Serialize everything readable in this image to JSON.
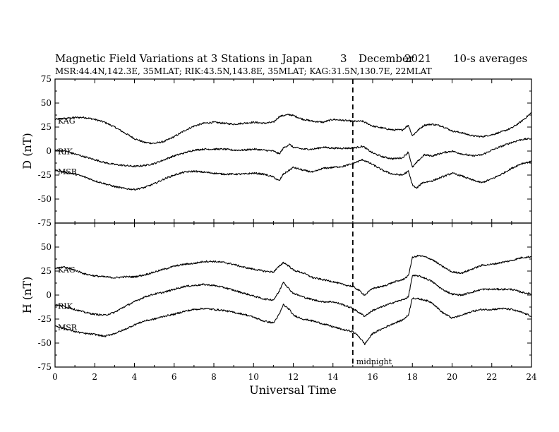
{
  "chart_data": {
    "type": "line",
    "title": "Magnetic Field Variations at 3 Stations in Japan",
    "date_day": "3",
    "date_month": "December",
    "date_year": "2021",
    "averaging": "10-s averages",
    "station_info": "MSR:44.4N,142.3E, 35MLAT;  RIK:43.5N,143.8E, 35MLAT;  KAG:31.5N,130.7E, 22MLAT",
    "xlabel": "Universal Time",
    "xlim": [
      0,
      24
    ],
    "xticks": [
      "0",
      "2",
      "4",
      "6",
      "8",
      "10",
      "12",
      "14",
      "16",
      "18",
      "20",
      "22",
      "24"
    ],
    "annotation": {
      "label": "midnight",
      "x": 15
    },
    "panels": [
      {
        "ylabel": "D (nT)",
        "ylim": [
          -75,
          75
        ],
        "yticks": [
          "75",
          "50",
          "25",
          "0",
          "-25",
          "-50",
          "-75"
        ],
        "series": [
          {
            "name": "KAG",
            "x": [
              0,
              0.5,
              1,
              1.5,
              2,
              2.5,
              3,
              3.5,
              4,
              4.5,
              5,
              5.5,
              6,
              6.5,
              7,
              7.5,
              8,
              8.5,
              9,
              9.5,
              10,
              10.5,
              11,
              11.3,
              11.5,
              11.8,
              12,
              12.5,
              13,
              13.5,
              14,
              14.5,
              15,
              15.5,
              16,
              16.5,
              17,
              17.5,
              17.8,
              18,
              18.3,
              18.6,
              19,
              19.5,
              20,
              20.5,
              21,
              21.5,
              22,
              22.5,
              23,
              23.5,
              24
            ],
            "y": [
              33,
              34,
              35,
              35,
              33,
              30,
              25,
              19,
              13,
              9,
              8,
              10,
              15,
              21,
              26,
              29,
              30,
              29,
              28,
              29,
              30,
              29,
              30,
              36,
              37,
              38,
              37,
              33,
              31,
              30,
              33,
              32,
              31,
              31,
              26,
              24,
              22,
              22,
              27,
              16,
              22,
              27,
              28,
              26,
              21,
              19,
              16,
              15,
              17,
              20,
              24,
              31,
              40
            ]
          },
          {
            "name": "RIK",
            "x": [
              0,
              0.5,
              1,
              1.5,
              2,
              2.5,
              3,
              3.5,
              4,
              4.5,
              5,
              5.5,
              6,
              6.5,
              7,
              7.5,
              8,
              8.5,
              9,
              9.5,
              10,
              10.5,
              11,
              11.2,
              11.3,
              11.5,
              11.8,
              12,
              12.5,
              13,
              13.5,
              14,
              14.5,
              15,
              15.5,
              16,
              16.5,
              17,
              17.5,
              17.8,
              18,
              18.3,
              18.6,
              19,
              19.5,
              20,
              20.5,
              21,
              21.5,
              22,
              22.5,
              23,
              23.5,
              24
            ],
            "y": [
              1,
              0,
              -3,
              -6,
              -9,
              -12,
              -14,
              -15,
              -16,
              -15,
              -13,
              -9,
              -5,
              -2,
              1,
              2,
              2,
              2,
              1,
              1,
              2,
              1,
              0,
              -2,
              -3,
              3,
              7,
              4,
              2,
              2,
              4,
              3,
              3,
              3,
              5,
              -2,
              -6,
              -8,
              -7,
              -1,
              -17,
              -10,
              -4,
              -5,
              -2,
              0,
              -3,
              -5,
              -4,
              1,
              5,
              9,
              12,
              13
            ]
          },
          {
            "name": "MSR",
            "x": [
              0,
              0.5,
              1,
              1.5,
              2,
              2.5,
              3,
              3.5,
              4,
              4.5,
              5,
              5.5,
              6,
              6.5,
              7,
              7.5,
              8,
              8.5,
              9,
              9.5,
              10,
              10.5,
              11,
              11.2,
              11.3,
              11.5,
              11.8,
              12,
              12.5,
              13,
              13.5,
              14,
              14.5,
              15,
              15.5,
              16,
              16.5,
              17,
              17.5,
              17.8,
              18,
              18.2,
              18.5,
              19,
              19.5,
              20,
              20.5,
              21,
              21.5,
              22,
              22.5,
              23,
              23.5,
              24
            ],
            "y": [
              -20,
              -22,
              -24,
              -27,
              -31,
              -34,
              -37,
              -39,
              -40,
              -38,
              -34,
              -29,
              -25,
              -22,
              -21,
              -22,
              -23,
              -24,
              -24,
              -24,
              -23,
              -24,
              -27,
              -30,
              -31,
              -24,
              -20,
              -17,
              -20,
              -22,
              -18,
              -17,
              -16,
              -13,
              -9,
              -14,
              -20,
              -24,
              -25,
              -21,
              -35,
              -39,
              -33,
              -31,
              -27,
              -23,
              -26,
              -30,
              -33,
              -29,
              -24,
              -18,
              -13,
              -11
            ]
          }
        ]
      },
      {
        "ylabel": "H (nT)",
        "ylim": [
          -75,
          75
        ],
        "yticks": [
          "75",
          "50",
          "25",
          "0",
          "-25",
          "-50",
          "-75"
        ],
        "series": [
          {
            "name": "KAG",
            "x": [
              0,
              0.5,
              1,
              1.5,
              2,
              2.5,
              3,
              3.5,
              4,
              4.5,
              5,
              5.5,
              6,
              6.5,
              7,
              7.5,
              8,
              8.5,
              9,
              9.5,
              10,
              10.5,
              11,
              11.3,
              11.5,
              11.8,
              12,
              12.5,
              13,
              13.5,
              14,
              14.5,
              15,
              15.3,
              15.6,
              16,
              16.5,
              17,
              17.5,
              17.8,
              18,
              18.3,
              18.6,
              19,
              19.5,
              20,
              20.5,
              21,
              21.5,
              22,
              22.5,
              23,
              23.5,
              24
            ],
            "y": [
              28,
              29,
              26,
              22,
              20,
              19,
              18,
              19,
              19,
              21,
              24,
              27,
              30,
              32,
              33,
              35,
              35,
              34,
              32,
              29,
              27,
              25,
              24,
              30,
              34,
              30,
              26,
              23,
              18,
              16,
              14,
              11,
              9,
              5,
              0,
              7,
              9,
              13,
              16,
              20,
              39,
              41,
              40,
              37,
              30,
              24,
              23,
              27,
              31,
              32,
              34,
              36,
              39,
              40
            ]
          },
          {
            "name": "RIK",
            "x": [
              0,
              0.5,
              1,
              1.5,
              2,
              2.5,
              3,
              3.5,
              4,
              4.5,
              5,
              5.5,
              6,
              6.5,
              7,
              7.5,
              8,
              8.5,
              9,
              9.5,
              10,
              10.5,
              11,
              11.3,
              11.5,
              11.8,
              12,
              12.5,
              13,
              13.5,
              14,
              14.5,
              15,
              15.3,
              15.6,
              16,
              16.5,
              17,
              17.5,
              17.8,
              18,
              18.3,
              18.6,
              19,
              19.5,
              20,
              20.5,
              21,
              21.5,
              22,
              22.5,
              23,
              23.5,
              24
            ],
            "y": [
              -10,
              -12,
              -15,
              -18,
              -20,
              -21,
              -18,
              -12,
              -7,
              -2,
              1,
              3,
              6,
              9,
              10,
              11,
              10,
              8,
              5,
              2,
              -1,
              -4,
              -5,
              4,
              14,
              6,
              2,
              -2,
              -5,
              -7,
              -7,
              -10,
              -14,
              -18,
              -22,
              -16,
              -12,
              -8,
              -5,
              -2,
              20,
              20,
              18,
              14,
              6,
              1,
              0,
              3,
              6,
              6,
              6,
              6,
              3,
              1
            ]
          },
          {
            "name": "MSR",
            "x": [
              0,
              0.5,
              1,
              1.5,
              2,
              2.5,
              3,
              3.5,
              4,
              4.5,
              5,
              5.5,
              6,
              6.5,
              7,
              7.5,
              8,
              8.5,
              9,
              9.5,
              10,
              10.5,
              11,
              11.3,
              11.5,
              11.8,
              12,
              12.5,
              13,
              13.5,
              14,
              14.5,
              15,
              15.3,
              15.6,
              16,
              16.5,
              17,
              17.5,
              17.8,
              18,
              18.3,
              18.6,
              19,
              19.5,
              20,
              20.5,
              21,
              21.5,
              22,
              22.5,
              23,
              23.5,
              24
            ],
            "y": [
              -32,
              -35,
              -38,
              -40,
              -41,
              -43,
              -40,
              -36,
              -31,
              -27,
              -25,
              -22,
              -20,
              -17,
              -15,
              -14,
              -15,
              -16,
              -18,
              -20,
              -23,
              -27,
              -29,
              -20,
              -10,
              -15,
              -21,
              -25,
              -27,
              -30,
              -33,
              -36,
              -38,
              -43,
              -51,
              -40,
              -35,
              -30,
              -26,
              -21,
              -3,
              -4,
              -5,
              -8,
              -18,
              -24,
              -21,
              -17,
              -15,
              -15,
              -14,
              -15,
              -18,
              -22
            ]
          }
        ]
      }
    ]
  }
}
